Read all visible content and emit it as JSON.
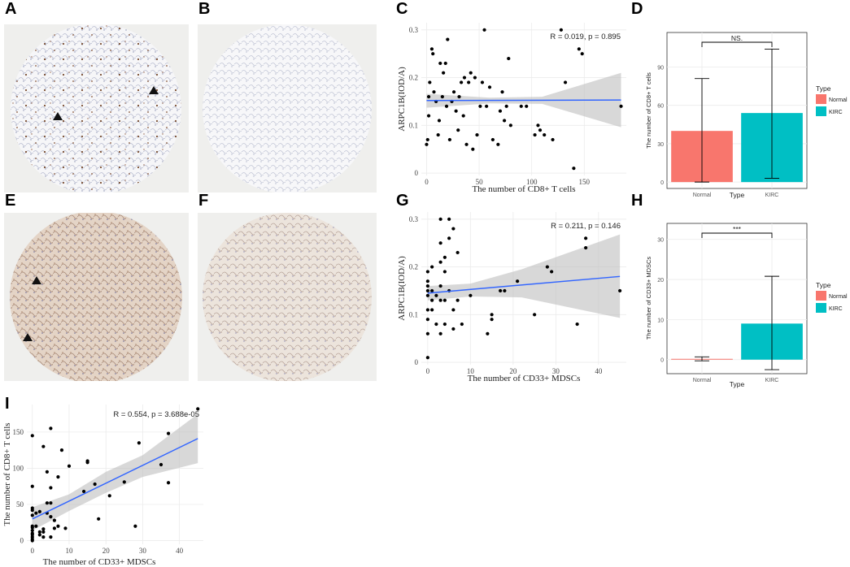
{
  "panel_labels": [
    "A",
    "B",
    "C",
    "D",
    "E",
    "F",
    "G",
    "H",
    "I"
  ],
  "images": {
    "A": {
      "desc_icon": "ihc-tissue-core-cd8-stained"
    },
    "B": {
      "desc_icon": "ihc-tissue-core-normal"
    },
    "E": {
      "desc_icon": "ihc-tissue-core-cd33-stained"
    },
    "F": {
      "desc_icon": "ihc-tissue-core-normal"
    }
  },
  "colors": {
    "normal": "#F8766D",
    "kirc": "#00BFC4",
    "line": "#3366FF",
    "band": "#BEBEBE",
    "grid": "#EBEBEB"
  },
  "chart_data": [
    {
      "id": "C",
      "type": "scatter",
      "xlabel": "The number of CD8+ T cells",
      "ylabel": "ARPC1B(IOD/A)",
      "xlim": [
        -5,
        190
      ],
      "ylim": [
        -0.005,
        0.315
      ],
      "xticks": [
        0,
        50,
        100,
        150
      ],
      "yticks": [
        0,
        0.1,
        0.2,
        0.3
      ],
      "annotation": "R = 0.019, p = 0.895",
      "fit": {
        "x0": 0,
        "y0": 0.152,
        "x1": 185,
        "y1": 0.153
      },
      "band": [
        [
          0,
          0.166,
          0.137
        ],
        [
          60,
          0.158,
          0.146
        ],
        [
          110,
          0.16,
          0.145
        ],
        [
          185,
          0.21,
          0.096
        ]
      ],
      "points": [
        [
          0,
          0.06
        ],
        [
          1,
          0.07
        ],
        [
          2,
          0.12
        ],
        [
          2,
          0.16
        ],
        [
          3,
          0.19
        ],
        [
          5,
          0.26
        ],
        [
          6,
          0.25
        ],
        [
          7,
          0.17
        ],
        [
          9,
          0.15
        ],
        [
          11,
          0.08
        ],
        [
          12,
          0.11
        ],
        [
          13,
          0.23
        ],
        [
          15,
          0.16
        ],
        [
          16,
          0.21
        ],
        [
          18,
          0.23
        ],
        [
          19,
          0.14
        ],
        [
          20,
          0.28
        ],
        [
          22,
          0.07
        ],
        [
          24,
          0.15
        ],
        [
          26,
          0.17
        ],
        [
          28,
          0.13
        ],
        [
          30,
          0.09
        ],
        [
          31,
          0.16
        ],
        [
          33,
          0.19
        ],
        [
          35,
          0.12
        ],
        [
          36,
          0.2
        ],
        [
          38,
          0.06
        ],
        [
          40,
          0.19
        ],
        [
          42,
          0.21
        ],
        [
          44,
          0.05
        ],
        [
          46,
          0.2
        ],
        [
          48,
          0.08
        ],
        [
          51,
          0.14
        ],
        [
          53,
          0.19
        ],
        [
          55,
          0.3
        ],
        [
          57,
          0.14
        ],
        [
          60,
          0.18
        ],
        [
          63,
          0.07
        ],
        [
          68,
          0.06
        ],
        [
          70,
          0.13
        ],
        [
          72,
          0.17
        ],
        [
          74,
          0.11
        ],
        [
          76,
          0.14
        ],
        [
          78,
          0.24
        ],
        [
          80,
          0.1
        ],
        [
          90,
          0.14
        ],
        [
          95,
          0.14
        ],
        [
          103,
          0.08
        ],
        [
          106,
          0.1
        ],
        [
          108,
          0.09
        ],
        [
          112,
          0.08
        ],
        [
          120,
          0.07
        ],
        [
          128,
          0.3
        ],
        [
          132,
          0.19
        ],
        [
          140,
          0.01
        ],
        [
          145,
          0.26
        ],
        [
          148,
          0.25
        ],
        [
          185,
          0.14
        ]
      ]
    },
    {
      "id": "D",
      "type": "bar",
      "categories": [
        "Normal",
        "KIRC"
      ],
      "values": [
        40,
        54
      ],
      "errors": [
        [
          0,
          81
        ],
        [
          3,
          104
        ]
      ],
      "ylabel": "The number of CD8+ T cells",
      "xlabel": "Type",
      "ylim": [
        -5,
        117
      ],
      "yticks": [
        0,
        30,
        60,
        90
      ],
      "sig_label": "NS.",
      "legend_title": "Type",
      "legend": [
        "Normal",
        "KIRC"
      ]
    },
    {
      "id": "G",
      "type": "scatter",
      "xlabel": "The number of CD33+ MDSCs",
      "ylabel": "ARPC1B(IOD/A)",
      "xlim": [
        -1.5,
        46.5
      ],
      "ylim": [
        -0.005,
        0.315
      ],
      "xticks": [
        0,
        10,
        20,
        30,
        40
      ],
      "yticks": [
        0,
        0.1,
        0.2,
        0.3
      ],
      "annotation": "R = 0.211, p = 0.146",
      "fit": {
        "x0": 0,
        "y0": 0.145,
        "x1": 45,
        "y1": 0.18
      },
      "band": [
        [
          0,
          0.16,
          0.13
        ],
        [
          10,
          0.165,
          0.138
        ],
        [
          22,
          0.195,
          0.136
        ],
        [
          45,
          0.268,
          0.093
        ]
      ],
      "points": [
        [
          0,
          0.01
        ],
        [
          0,
          0.06
        ],
        [
          0,
          0.09
        ],
        [
          0,
          0.11
        ],
        [
          0,
          0.14
        ],
        [
          0,
          0.15
        ],
        [
          0,
          0.16
        ],
        [
          0,
          0.17
        ],
        [
          0,
          0.19
        ],
        [
          1,
          0.13
        ],
        [
          1,
          0.15
        ],
        [
          1,
          0.2
        ],
        [
          1,
          0.11
        ],
        [
          2,
          0.14
        ],
        [
          2,
          0.08
        ],
        [
          3,
          0.06
        ],
        [
          3,
          0.13
        ],
        [
          3,
          0.16
        ],
        [
          3,
          0.21
        ],
        [
          3,
          0.25
        ],
        [
          3,
          0.3
        ],
        [
          4,
          0.08
        ],
        [
          4,
          0.13
        ],
        [
          4,
          0.19
        ],
        [
          4,
          0.22
        ],
        [
          5,
          0.26
        ],
        [
          5,
          0.3
        ],
        [
          5,
          0.15
        ],
        [
          6,
          0.11
        ],
        [
          6,
          0.07
        ],
        [
          6,
          0.28
        ],
        [
          7,
          0.13
        ],
        [
          7,
          0.23
        ],
        [
          8,
          0.08
        ],
        [
          10,
          0.14
        ],
        [
          14,
          0.06
        ],
        [
          15,
          0.1
        ],
        [
          15,
          0.09
        ],
        [
          17,
          0.15
        ],
        [
          18,
          0.15
        ],
        [
          21,
          0.17
        ],
        [
          25,
          0.1
        ],
        [
          28,
          0.2
        ],
        [
          29,
          0.19
        ],
        [
          35,
          0.08
        ],
        [
          37,
          0.24
        ],
        [
          37,
          0.26
        ],
        [
          45,
          0.15
        ]
      ]
    },
    {
      "id": "H",
      "type": "bar",
      "categories": [
        "Normal",
        "KIRC"
      ],
      "values": [
        0.2,
        9
      ],
      "errors": [
        [
          -0.3,
          0.7
        ],
        [
          -2.5,
          20.8
        ]
      ],
      "ylabel": "The number of CD33+ MDSCs",
      "xlabel": "Type",
      "ylim": [
        -3.5,
        34
      ],
      "yticks": [
        0,
        10,
        20,
        30
      ],
      "sig_label": "***",
      "legend_title": "Type",
      "legend": [
        "Normal",
        "KIRC"
      ]
    },
    {
      "id": "I",
      "type": "scatter",
      "xlabel": "The number of CD33+ MDSCs",
      "ylabel": "The number of CD8+ T cells",
      "xlim": [
        -1.5,
        46.5
      ],
      "ylim": [
        -5,
        188
      ],
      "xticks": [
        0,
        10,
        20,
        30,
        40
      ],
      "yticks": [
        0,
        50,
        100,
        150
      ],
      "annotation": "R = 0.554, p = 3.688e-05",
      "fit": {
        "x0": 0,
        "y0": 30,
        "x1": 45,
        "y1": 141
      },
      "band": [
        [
          0,
          46,
          14
        ],
        [
          10,
          64,
          41
        ],
        [
          20,
          95,
          66
        ],
        [
          30,
          118,
          88
        ],
        [
          45,
          175,
          107
        ]
      ],
      "points": [
        [
          0,
          0
        ],
        [
          0,
          2
        ],
        [
          0,
          5
        ],
        [
          0,
          8
        ],
        [
          0,
          10
        ],
        [
          0,
          14
        ],
        [
          0,
          18
        ],
        [
          0,
          20
        ],
        [
          0,
          35
        ],
        [
          0,
          42
        ],
        [
          0,
          45
        ],
        [
          0,
          75
        ],
        [
          0,
          145
        ],
        [
          1,
          20
        ],
        [
          1,
          38
        ],
        [
          2,
          8
        ],
        [
          2,
          40
        ],
        [
          2,
          12
        ],
        [
          3,
          5
        ],
        [
          3,
          12
        ],
        [
          3,
          16
        ],
        [
          3,
          130
        ],
        [
          4,
          52
        ],
        [
          4,
          95
        ],
        [
          4,
          38
        ],
        [
          5,
          5
        ],
        [
          5,
          33
        ],
        [
          5,
          52
        ],
        [
          5,
          73
        ],
        [
          5,
          155
        ],
        [
          6,
          17
        ],
        [
          6,
          28
        ],
        [
          7,
          20
        ],
        [
          7,
          88
        ],
        [
          8,
          125
        ],
        [
          9,
          17
        ],
        [
          10,
          103
        ],
        [
          14,
          68
        ],
        [
          15,
          108
        ],
        [
          15,
          110
        ],
        [
          17,
          78
        ],
        [
          18,
          30
        ],
        [
          21,
          62
        ],
        [
          25,
          81
        ],
        [
          28,
          20
        ],
        [
          29,
          135
        ],
        [
          35,
          105
        ],
        [
          37,
          148
        ],
        [
          37,
          80
        ],
        [
          45,
          182
        ]
      ]
    }
  ]
}
